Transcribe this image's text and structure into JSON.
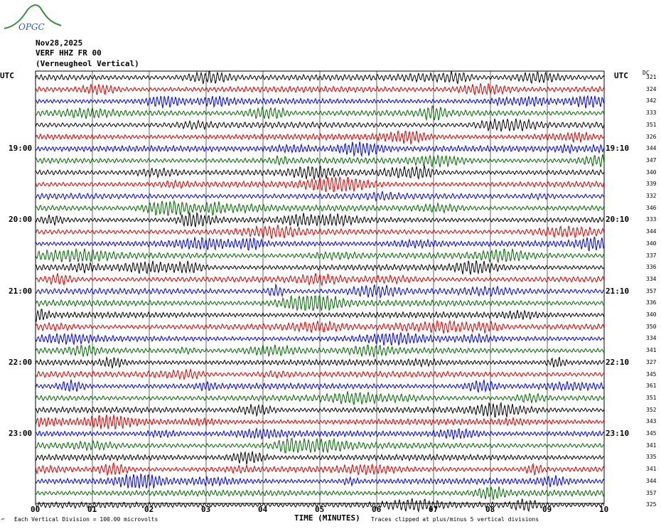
{
  "header": {
    "date": "Nov28,2025",
    "station": "VERF HHZ FR 00",
    "location": "(Verneugheol Vertical)"
  },
  "logo": {
    "text": "OPGC"
  },
  "colors": {
    "cycle": [
      "#000000",
      "#d00000",
      "#0000d0",
      "#006400"
    ],
    "grid": "#000000"
  },
  "chart_data": {
    "type": "line",
    "title": "",
    "xlabel": "TIME (MINUTES)",
    "ylabel": "",
    "x_ticks": [
      "00",
      "01",
      "02",
      "03",
      "04",
      "05",
      "06",
      "07",
      "08",
      "09",
      "10"
    ],
    "xlim": [
      0,
      10
    ],
    "left_axis_title": "UTC",
    "right_axis_title": "UTC",
    "left_time_labels": [
      {
        "row": 6,
        "label": "19:00"
      },
      {
        "row": 12,
        "label": "20:00"
      },
      {
        "row": 18,
        "label": "21:00"
      },
      {
        "row": 24,
        "label": "22:00"
      },
      {
        "row": 30,
        "label": "23:00"
      }
    ],
    "right_time_labels": [
      {
        "row": 6,
        "label": "19:10"
      },
      {
        "row": 12,
        "label": "20:10"
      },
      {
        "row": 18,
        "label": "21:10"
      },
      {
        "row": 24,
        "label": "22:10"
      },
      {
        "row": 30,
        "label": "23:10"
      }
    ],
    "dc_label": "DC",
    "dc_offsets": [
      "321",
      "324",
      "342",
      "333",
      "351",
      "326",
      "344",
      "347",
      "340",
      "339",
      "332",
      "346",
      "333",
      "344",
      "340",
      "337",
      "336",
      "334",
      "357",
      "336",
      "340",
      "350",
      "334",
      "341",
      "327",
      "345",
      "361",
      "351",
      "352",
      "343",
      "345",
      "341",
      "335",
      "341",
      "344",
      "357",
      "325"
    ],
    "footer_left": "Each Vertical Division =  100.00 microvolts",
    "footer_right": "Traces clipped at plus/minus 5 vertical divisions"
  }
}
